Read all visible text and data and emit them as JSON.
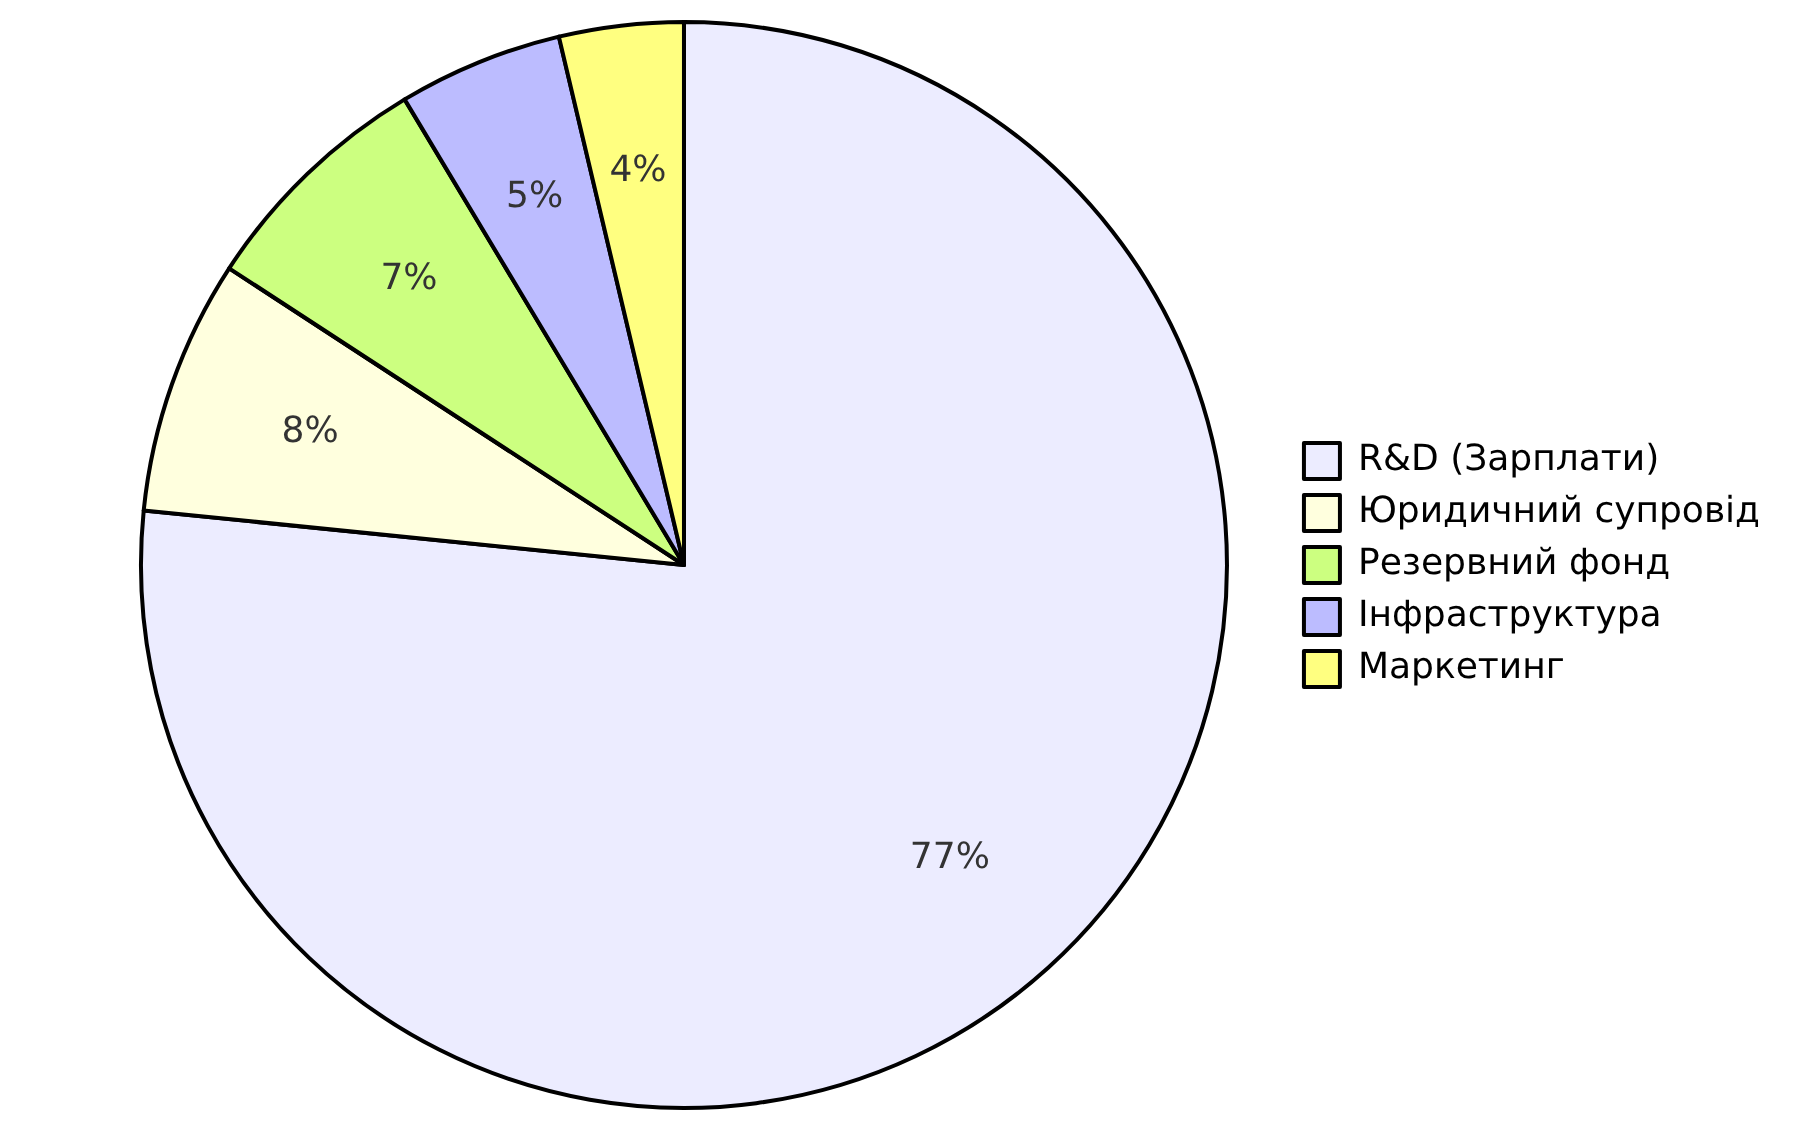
{
  "chart_data": {
    "type": "pie",
    "categories": [
      "R&D (Зарплати)",
      "Юридичний супровід",
      "Резервний фонд",
      "Інфраструктура",
      "Маркетинг"
    ],
    "values": [
      76.6,
      7.6,
      7.2,
      4.9,
      3.7
    ],
    "colors": [
      "#ececff",
      "#ffffde",
      "#ccff80",
      "#bcbcff",
      "#ffff80"
    ],
    "value_labels": [
      "77%",
      "8%",
      "7%",
      "5%",
      "4%"
    ],
    "legend": "right"
  }
}
